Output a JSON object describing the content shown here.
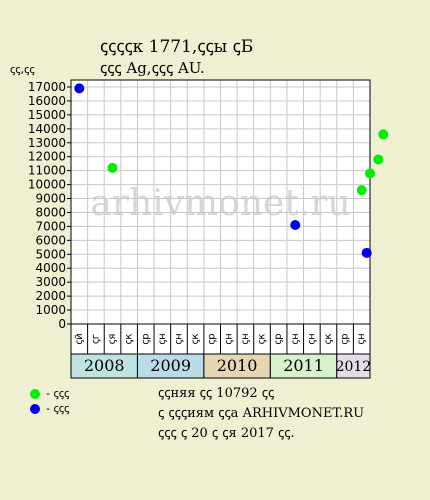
{
  "title_line1": "ꞔꞔꞔꞔк 1771,ꞔꞔы ꞔБ",
  "title_line2": "ꞔꞔꞔ Ag,ꞔꞔꞔ AU.",
  "unit_label": "ꞔꞔ,ꞔꞔ",
  "watermark": "arhivmonet.ru",
  "legend": [
    {
      "label": "- ꞔꞔꞔ",
      "color": "#00ee00"
    },
    {
      "label": "- ꞔꞔꞔ",
      "color": "#0000ee"
    }
  ],
  "info": {
    "line1": "ꞔꞔняя ꞔꞔ 10792 ꞔꞔ",
    "line2": "ꞔ ꞔꞔꞔиям ꞔꞔа ARHIVMONET.RU",
    "line3": "ꞔꞔꞔ ꞔ 20 ꞔ ꞔя 2017 ꞔꞔ."
  },
  "chart_data": {
    "type": "scatter",
    "ylim": [
      0,
      17000
    ],
    "y_ticks": [
      0,
      1000,
      2000,
      3000,
      4000,
      5000,
      6000,
      7000,
      8000,
      9000,
      10000,
      11000,
      12000,
      13000,
      14000,
      15000,
      16000,
      17000
    ],
    "month_labels": [
      "ꞔй",
      "ꞔг",
      "ꞔя",
      "ꞔк",
      "ꞔр",
      "ꞔн",
      "ꞔн",
      "ꞔк",
      "ꞔр",
      "ꞔн",
      "ꞔн",
      "ꞔк",
      "ꞔр",
      "ꞔн",
      "ꞔн",
      "ꞔк",
      "ꞔр",
      "ꞔн"
    ],
    "year_groups": [
      {
        "year": "2008",
        "start": 0,
        "count": 4,
        "color": "#bfe3e3"
      },
      {
        "year": "2009",
        "start": 4,
        "count": 4,
        "color": "#b8dde8"
      },
      {
        "year": "2010",
        "start": 8,
        "count": 4,
        "color": "#e3d6b0"
      },
      {
        "year": "2011",
        "start": 12,
        "count": 4,
        "color": "#d5f2cc"
      },
      {
        "year": "2012",
        "start": 16,
        "count": 2,
        "color": "#e4dce8"
      }
    ],
    "series": [
      {
        "color": "#00ee00",
        "points": [
          {
            "x": 2.0,
            "y": 11200
          },
          {
            "x": 17.0,
            "y": 9600
          },
          {
            "x": 17.5,
            "y": 10800
          },
          {
            "x": 18.0,
            "y": 11800
          },
          {
            "x": 18.3,
            "y": 13600
          }
        ]
      },
      {
        "color": "#0000ee",
        "points": [
          {
            "x": 0.0,
            "y": 16900
          },
          {
            "x": 13.0,
            "y": 7100
          },
          {
            "x": 17.3,
            "y": 5100
          }
        ]
      }
    ]
  }
}
